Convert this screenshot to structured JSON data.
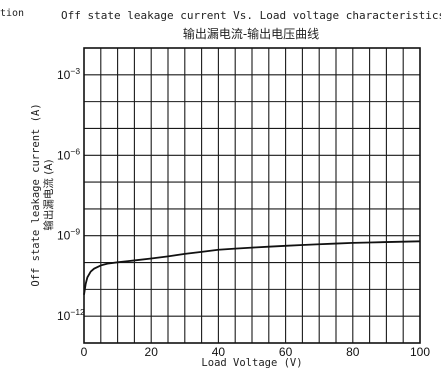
{
  "header_fragment": "tion",
  "chart_data": {
    "type": "line",
    "title": "Off state leakage current Vs. Load voltage characteristics",
    "subtitle": "输出漏电流-输出电压曲线",
    "xlabel": "Load Voltage (V)",
    "ylabel": "Off state leakage current (A)",
    "ylabel_cn": "输出漏电流 (A)",
    "xlim": [
      0,
      100
    ],
    "ylim_log10": [
      -13,
      -2
    ],
    "y_scale": "log",
    "grid": true,
    "x_ticks": [
      "0",
      "20",
      "40",
      "60",
      "80",
      "100"
    ],
    "y_ticks": [
      {
        "base": "10",
        "exp": "−3",
        "value": 0.001
      },
      {
        "base": "10",
        "exp": "−6",
        "value": 1e-06
      },
      {
        "base": "10",
        "exp": "−9",
        "value": 1e-09
      },
      {
        "base": "10",
        "exp": "−12",
        "value": 1e-12
      }
    ],
    "series": [
      {
        "x": [
          0,
          0.5,
          1,
          2,
          3,
          5,
          7,
          10,
          15,
          20,
          25,
          30,
          35,
          40,
          45,
          50,
          55,
          60,
          65,
          70,
          75,
          80,
          85,
          90,
          95,
          100
        ],
        "y": [
          6.3e-12,
          1.6e-11,
          2.8e-11,
          4.6e-11,
          5.9e-11,
          7.8e-11,
          9.1e-11,
          1.02e-10,
          1.2e-10,
          1.41e-10,
          1.7e-10,
          2.1e-10,
          2.5e-10,
          3e-10,
          3.3e-10,
          3.6e-10,
          3.9e-10,
          4.2e-10,
          4.5e-10,
          4.8e-10,
          5.1e-10,
          5.4e-10,
          5.6e-10,
          5.8e-10,
          6e-10,
          6.2e-10
        ]
      }
    ]
  }
}
